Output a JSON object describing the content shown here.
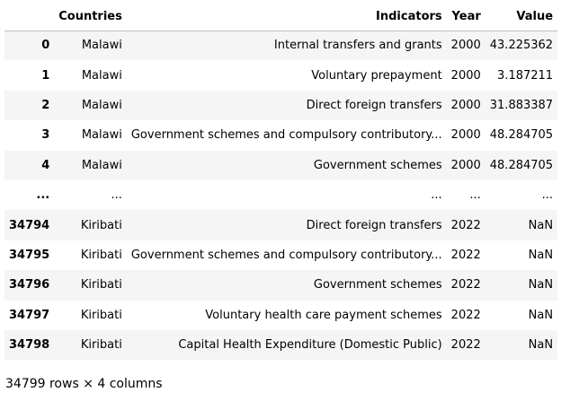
{
  "table": {
    "columns": [
      "Countries",
      "Indicators",
      "Year",
      "Value"
    ],
    "rows": [
      {
        "index": "0",
        "country": "Malawi",
        "indicator": "Internal transfers and grants",
        "year": "2000",
        "value": "43.225362"
      },
      {
        "index": "1",
        "country": "Malawi",
        "indicator": "Voluntary prepayment",
        "year": "2000",
        "value": "3.187211"
      },
      {
        "index": "2",
        "country": "Malawi",
        "indicator": "Direct foreign transfers",
        "year": "2000",
        "value": "31.883387"
      },
      {
        "index": "3",
        "country": "Malawi",
        "indicator": "Government schemes and compulsory contributory...",
        "year": "2000",
        "value": "48.284705"
      },
      {
        "index": "4",
        "country": "Malawi",
        "indicator": "Government schemes",
        "year": "2000",
        "value": "48.284705"
      },
      {
        "index": "...",
        "country": "...",
        "indicator": "...",
        "year": "...",
        "value": "..."
      },
      {
        "index": "34794",
        "country": "Kiribati",
        "indicator": "Direct foreign transfers",
        "year": "2022",
        "value": "NaN"
      },
      {
        "index": "34795",
        "country": "Kiribati",
        "indicator": "Government schemes and compulsory contributory...",
        "year": "2022",
        "value": "NaN"
      },
      {
        "index": "34796",
        "country": "Kiribati",
        "indicator": "Government schemes",
        "year": "2022",
        "value": "NaN"
      },
      {
        "index": "34797",
        "country": "Kiribati",
        "indicator": "Voluntary health care payment schemes",
        "year": "2022",
        "value": "NaN"
      },
      {
        "index": "34798",
        "country": "Kiribati",
        "indicator": "Capital Health Expenditure (Domestic Public)",
        "year": "2022",
        "value": "NaN"
      }
    ]
  },
  "summary": "34799 rows × 4 columns"
}
